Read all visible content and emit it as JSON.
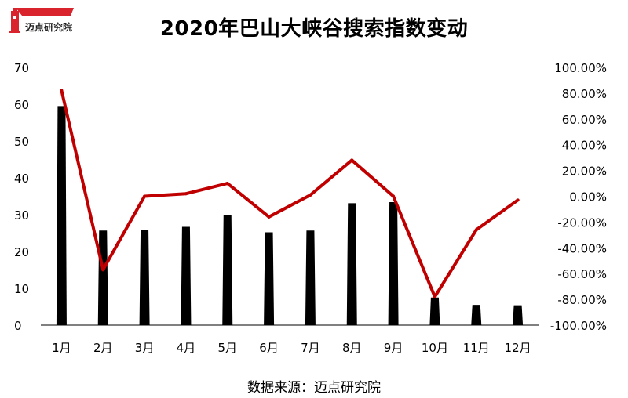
{
  "logo": {
    "text": "迈点研究院"
  },
  "title": "2020年巴山大峡谷搜索指数变动",
  "source": "数据来源：迈点研究院",
  "colors": {
    "bar": "#000000",
    "line": "#c00000",
    "logo_red": "#d9232d"
  },
  "chart_data": {
    "type": "bar+line",
    "title": "2020年巴山大峡谷搜索指数变动",
    "categories": [
      "1月",
      "2月",
      "3月",
      "4月",
      "5月",
      "6月",
      "7月",
      "8月",
      "9月",
      "10月",
      "11月",
      "12月"
    ],
    "series": [
      {
        "type": "bar",
        "axis": "left",
        "values": [
          59.5,
          25.7,
          25.9,
          26.7,
          29.8,
          25.2,
          25.7,
          33.1,
          33.4,
          7.5,
          5.5,
          5.4
        ]
      },
      {
        "type": "line",
        "axis": "right",
        "values": [
          82,
          -57,
          0,
          2,
          10,
          -16,
          1,
          28,
          0,
          -78,
          -26,
          -3
        ]
      }
    ],
    "y_left": {
      "min": 0,
      "max": 70,
      "ticks": [
        "0",
        "10",
        "20",
        "30",
        "40",
        "50",
        "60",
        "70"
      ]
    },
    "y_right": {
      "min": -100,
      "max": 100,
      "ticks": [
        "-100.00%",
        "-80.00%",
        "-60.00%",
        "-40.00%",
        "-20.00%",
        "0.00%",
        "20.00%",
        "40.00%",
        "60.00%",
        "80.00%",
        "100.00%"
      ]
    },
    "grid": false,
    "legend": "none"
  }
}
